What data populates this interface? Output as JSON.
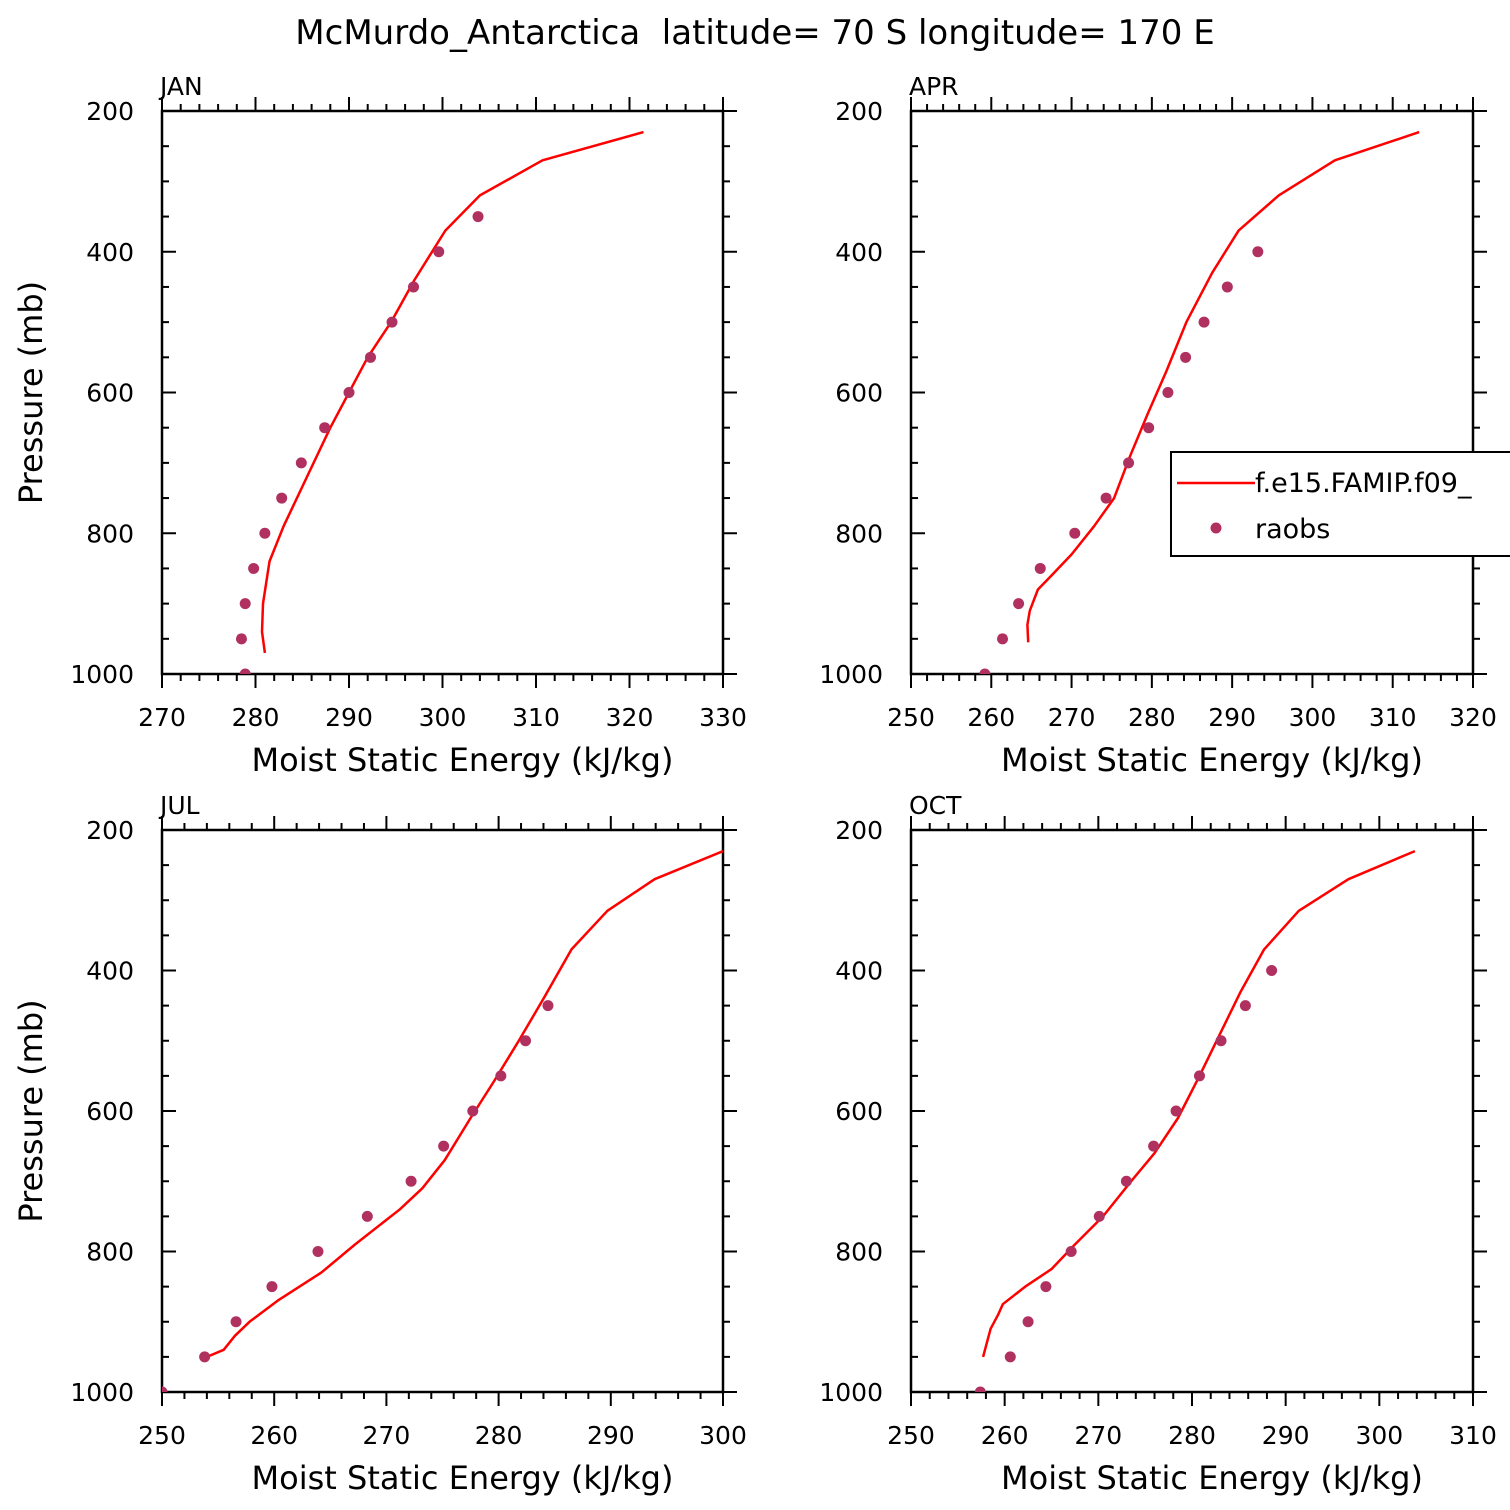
{
  "figure": {
    "title": "McMurdo_Antarctica  latitude= 70 S longitude= 170 E"
  },
  "colors": {
    "model_line": "#ff0000",
    "obs_marker": "#b03060",
    "axes": "#000000"
  },
  "chart_data": [
    {
      "type": "line",
      "panel_label": "JAN",
      "xlabel": "Moist Static Energy (kJ/kg)",
      "ylabel": "Pressure (mb)",
      "xlim": [
        270,
        330
      ],
      "ylim": [
        1000,
        200
      ],
      "y_reversed": true,
      "xticks": [
        270,
        280,
        290,
        300,
        310,
        320,
        330
      ],
      "yticks": [
        200,
        400,
        600,
        800,
        1000
      ],
      "series": [
        {
          "name": "f.e15.FAMIP.f09_",
          "kind": "line",
          "points": [
            [
              321.5,
              230
            ],
            [
              310.7,
              270
            ],
            [
              304,
              320
            ],
            [
              300.3,
              370
            ],
            [
              297,
              440
            ],
            [
              294.5,
              500
            ],
            [
              292,
              550
            ],
            [
              290,
              600
            ],
            [
              288,
              650
            ],
            [
              285.5,
              720
            ],
            [
              283,
              790
            ],
            [
              281.5,
              840
            ],
            [
              280.8,
              900
            ],
            [
              280.7,
              940
            ],
            [
              281,
              970
            ]
          ]
        },
        {
          "name": "raobs",
          "kind": "scatter",
          "points": [
            [
              303.8,
              350
            ],
            [
              299.6,
              400
            ],
            [
              296.9,
              450
            ],
            [
              294.6,
              500
            ],
            [
              292.3,
              550
            ],
            [
              290,
              600
            ],
            [
              287.4,
              650
            ],
            [
              284.9,
              700
            ],
            [
              282.8,
              750
            ],
            [
              281,
              800
            ],
            [
              279.8,
              850
            ],
            [
              278.9,
              900
            ],
            [
              278.5,
              950
            ],
            [
              278.9,
              1000
            ]
          ]
        }
      ],
      "legend": null
    },
    {
      "type": "line",
      "panel_label": "APR",
      "xlabel": "Moist Static Energy (kJ/kg)",
      "ylabel": "",
      "xlim": [
        250,
        320
      ],
      "ylim": [
        1000,
        200
      ],
      "y_reversed": true,
      "xticks": [
        250,
        260,
        270,
        280,
        290,
        300,
        310,
        320
      ],
      "yticks": [
        200,
        400,
        600,
        800,
        1000
      ],
      "series": [
        {
          "name": "f.e15.FAMIP.f09_",
          "kind": "line",
          "points": [
            [
              313.3,
              230
            ],
            [
              302.8,
              270
            ],
            [
              295.8,
              320
            ],
            [
              290.8,
              370
            ],
            [
              287.5,
              430
            ],
            [
              284.3,
              500
            ],
            [
              281.8,
              570
            ],
            [
              279.5,
              630
            ],
            [
              277.3,
              690
            ],
            [
              275.3,
              750
            ],
            [
              272.8,
              790
            ],
            [
              270,
              830
            ],
            [
              267.5,
              860
            ],
            [
              265.8,
              880
            ],
            [
              264.8,
              910
            ],
            [
              264.5,
              930
            ],
            [
              264.6,
              955
            ]
          ]
        },
        {
          "name": "raobs",
          "kind": "scatter",
          "points": [
            [
              293.2,
              400
            ],
            [
              289.4,
              450
            ],
            [
              286.5,
              500
            ],
            [
              284.2,
              550
            ],
            [
              282,
              600
            ],
            [
              279.6,
              650
            ],
            [
              277.1,
              700
            ],
            [
              274.3,
              750
            ],
            [
              270.4,
              800
            ],
            [
              266.1,
              850
            ],
            [
              263.4,
              900
            ],
            [
              261.4,
              950
            ],
            [
              259.2,
              1000
            ]
          ]
        }
      ],
      "legend": {
        "placement": "right-middle",
        "entries": [
          "f.e15.FAMIP.f09_",
          "raobs"
        ]
      }
    },
    {
      "type": "line",
      "panel_label": "JUL",
      "xlabel": "Moist Static Energy (kJ/kg)",
      "ylabel": "Pressure (mb)",
      "xlim": [
        250,
        300
      ],
      "ylim": [
        1000,
        200
      ],
      "y_reversed": true,
      "xticks": [
        250,
        260,
        270,
        280,
        290,
        300
      ],
      "yticks": [
        200,
        400,
        600,
        800,
        1000
      ],
      "series": [
        {
          "name": "f.e15.FAMIP.f09_",
          "kind": "line",
          "points": [
            [
              300,
              230
            ],
            [
              293.9,
              270
            ],
            [
              289.7,
              315
            ],
            [
              286.5,
              370
            ],
            [
              284,
              440
            ],
            [
              281.8,
              500
            ],
            [
              279.5,
              560
            ],
            [
              277.5,
              610
            ],
            [
              275.2,
              670
            ],
            [
              273.2,
              710
            ],
            [
              271.2,
              740
            ],
            [
              267.2,
              790
            ],
            [
              264.2,
              830
            ],
            [
              260.3,
              870
            ],
            [
              257.8,
              900
            ],
            [
              256.5,
              920
            ],
            [
              255.5,
              940
            ],
            [
              254,
              950
            ]
          ]
        },
        {
          "name": "raobs",
          "kind": "scatter",
          "points": [
            [
              284.4,
              450
            ],
            [
              282.4,
              500
            ],
            [
              280.2,
              550
            ],
            [
              277.7,
              600
            ],
            [
              275.1,
              650
            ],
            [
              272.2,
              700
            ],
            [
              268.3,
              750
            ],
            [
              263.9,
              800
            ],
            [
              259.8,
              850
            ],
            [
              256.6,
              900
            ],
            [
              253.8,
              950
            ],
            [
              250,
              1000
            ]
          ]
        }
      ],
      "legend": null
    },
    {
      "type": "line",
      "panel_label": "OCT",
      "xlabel": "Moist Static Energy (kJ/kg)",
      "ylabel": "",
      "xlim": [
        250,
        310
      ],
      "ylim": [
        1000,
        200
      ],
      "y_reversed": true,
      "xticks": [
        250,
        260,
        270,
        280,
        290,
        300,
        310
      ],
      "yticks": [
        200,
        400,
        600,
        800,
        1000
      ],
      "series": [
        {
          "name": "f.e15.FAMIP.f09_",
          "kind": "line",
          "points": [
            [
              303.8,
              230
            ],
            [
              296.7,
              270
            ],
            [
              291.4,
              315
            ],
            [
              287.7,
              370
            ],
            [
              285.2,
              430
            ],
            [
              283,
              490
            ],
            [
              280.8,
              550
            ],
            [
              278.5,
              610
            ],
            [
              276,
              660
            ],
            [
              273.5,
              700
            ],
            [
              270.5,
              750
            ],
            [
              267.5,
              790
            ],
            [
              265,
              825
            ],
            [
              262.2,
              850
            ],
            [
              259.8,
              875
            ],
            [
              259.3,
              890
            ],
            [
              258.5,
              910
            ],
            [
              258,
              935
            ],
            [
              257.7,
              950
            ]
          ]
        },
        {
          "name": "raobs",
          "kind": "scatter",
          "points": [
            [
              288.5,
              400
            ],
            [
              285.7,
              450
            ],
            [
              283.1,
              500
            ],
            [
              280.8,
              550
            ],
            [
              278.3,
              600
            ],
            [
              275.9,
              650
            ],
            [
              273,
              700
            ],
            [
              270.1,
              750
            ],
            [
              267.1,
              800
            ],
            [
              264.4,
              850
            ],
            [
              262.5,
              900
            ],
            [
              260.6,
              950
            ],
            [
              257.4,
              1000
            ]
          ]
        }
      ],
      "legend": null
    }
  ]
}
